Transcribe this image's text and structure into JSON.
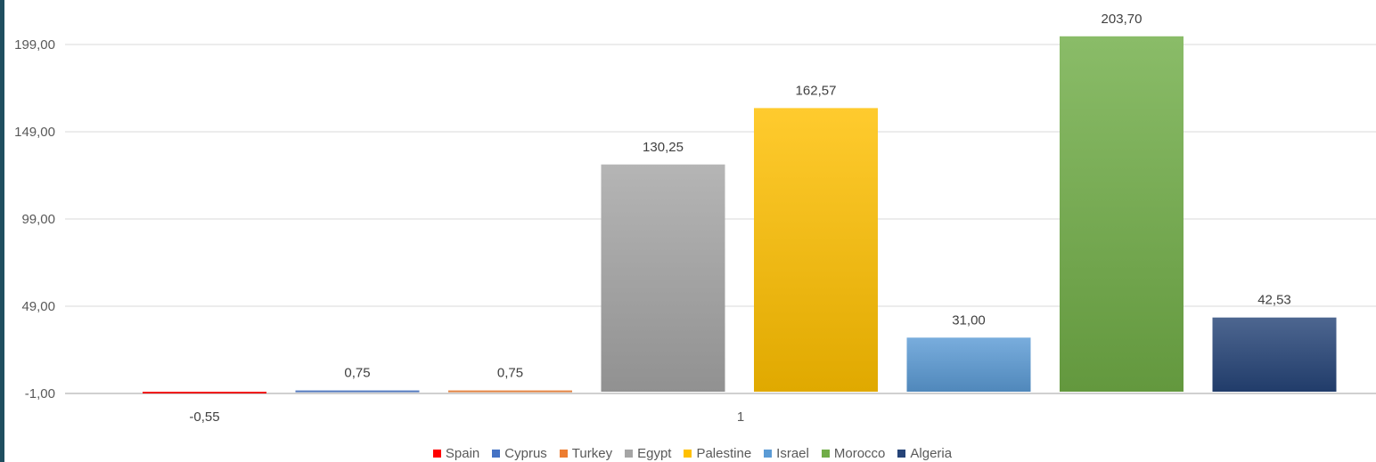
{
  "chart_data": {
    "type": "bar",
    "categories": [
      "1"
    ],
    "series": [
      {
        "name": "Spain",
        "values": [
          -0.55
        ],
        "label": "-0,55",
        "color": "#ff0000"
      },
      {
        "name": "Cyprus",
        "values": [
          0.75
        ],
        "label": "0,75",
        "color": "#4472c4"
      },
      {
        "name": "Turkey",
        "values": [
          0.75
        ],
        "label": "0,75",
        "color": "#ed7d31"
      },
      {
        "name": "Egypt",
        "values": [
          130.25
        ],
        "label": "130,25",
        "color": "#a5a5a5"
      },
      {
        "name": "Palestine",
        "values": [
          162.57
        ],
        "label": "162,57",
        "color": "#ffc000"
      },
      {
        "name": "Israel",
        "values": [
          31.0
        ],
        "label": "31,00",
        "color": "#5b9bd5"
      },
      {
        "name": "Morocco",
        "values": [
          203.7
        ],
        "label": "203,70",
        "color": "#70ad47"
      },
      {
        "name": "Algeria",
        "values": [
          42.53
        ],
        "label": "42,53",
        "color": "#264478"
      }
    ],
    "yticks": [
      {
        "value": -1,
        "label": "-1,00"
      },
      {
        "value": 49,
        "label": "49,00"
      },
      {
        "value": 99,
        "label": "99,00"
      },
      {
        "value": 149,
        "label": "149,00"
      },
      {
        "value": 199,
        "label": "199,00"
      }
    ],
    "ylim": [
      -1,
      222
    ],
    "grid": true,
    "legend_position": "bottom",
    "title": "",
    "xlabel": "",
    "ylabel": ""
  }
}
